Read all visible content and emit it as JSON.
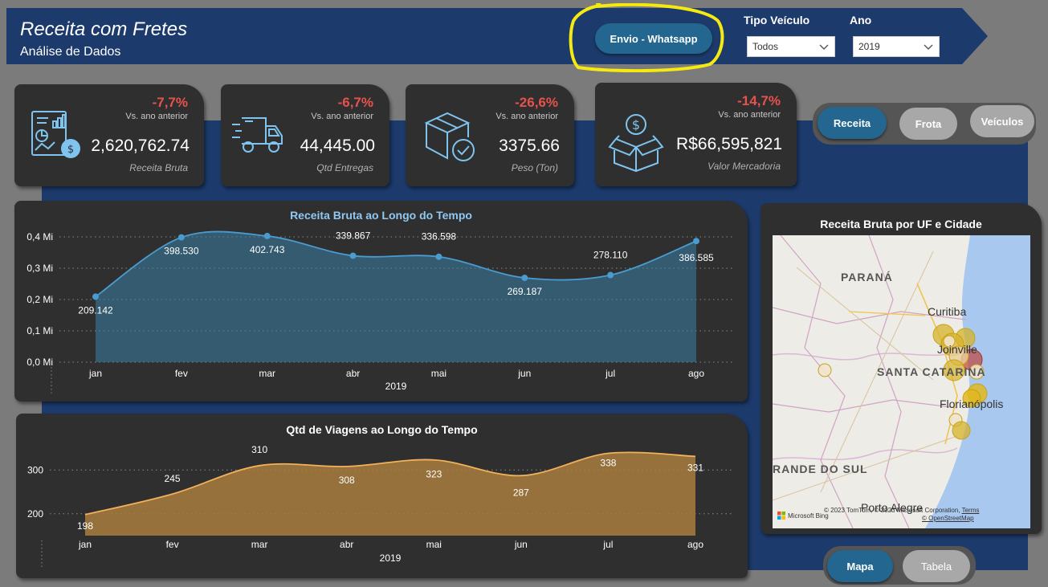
{
  "header": {
    "title": "Receita com Fretes",
    "subtitle": "Análise de Dados",
    "whatsapp_button": "Envio - Whatsapp"
  },
  "filters": {
    "vehicle_label": "Tipo Veículo",
    "vehicle_value": "Todos",
    "year_label": "Ano",
    "year_value": "2019"
  },
  "kpis": [
    {
      "pct": "-7,7%",
      "vs": "Vs. ano anterior",
      "value": "2,620,762.74",
      "label": "Receita Bruta",
      "icon": "report-chart-icon"
    },
    {
      "pct": "-6,7%",
      "vs": "Vs. ano anterior",
      "value": "44,445.00",
      "label": "Qtd Entregas",
      "icon": "delivery-truck-icon"
    },
    {
      "pct": "-26,6%",
      "vs": "Vs. ano anterior",
      "value": "3375.66",
      "label": "Peso (Ton)",
      "icon": "box-check-icon"
    },
    {
      "pct": "-14,7%",
      "vs": "Vs. ano anterior",
      "value": "R$66,595,821",
      "label": "Valor Mercadoria",
      "icon": "money-box-icon"
    }
  ],
  "nav": {
    "receita": "Receita",
    "frota": "Frota",
    "veiculos": "Veículos",
    "mapa": "Mapa",
    "tabela": "Tabela"
  },
  "colors": {
    "navy": "#1c3a6b",
    "card": "#2f2f2f",
    "negative": "#e8524e",
    "line_blue": "#3a8fc4",
    "line_orange": "#f2b15a",
    "highlight": "#f5ea10"
  },
  "chart_data": [
    {
      "type": "area",
      "title": "Receita Bruta ao Longo do Tempo",
      "xlabel": "2019",
      "ylabel": "",
      "categories": [
        "jan",
        "fev",
        "mar",
        "abr",
        "mai",
        "jun",
        "jul",
        "ago"
      ],
      "values": [
        209.142,
        398.53,
        402.743,
        339.867,
        336.598,
        269.187,
        278.11,
        386.585
      ],
      "labels": [
        "209.142",
        "398.530",
        "402.743",
        "339.867",
        "336.598",
        "269.187",
        "278.110",
        "386.585"
      ],
      "yticks": [
        "0,0 Mi",
        "0,1 Mi",
        "0,2 Mi",
        "0,3 Mi",
        "0,4 Mi"
      ],
      "ylim": [
        0,
        400
      ],
      "grid": true
    },
    {
      "type": "area",
      "title": "Qtd de Viagens ao Longo do Tempo",
      "xlabel": "2019",
      "ylabel": "",
      "categories": [
        "jan",
        "fev",
        "mar",
        "abr",
        "mai",
        "jun",
        "jul",
        "ago"
      ],
      "values": [
        198,
        245,
        310,
        308,
        323,
        287,
        338,
        331
      ],
      "labels": [
        "198",
        "245",
        "310",
        "308",
        "323",
        "287",
        "338",
        "331"
      ],
      "yticks": [
        "200",
        "300"
      ],
      "ylim": [
        150,
        350
      ],
      "grid": true
    }
  ],
  "map": {
    "title": "Receita Bruta por UF e Cidade",
    "places": [
      "PARANÁ",
      "Curitiba",
      "Joinville",
      "SANTA CATARINA",
      "Florianópolis",
      "RANDE DO SUL",
      "Porto Alegre"
    ],
    "attribution": "© 2023 TomTom, © 2023 Microsoft Corporation,",
    "terms": "Terms",
    "osm": "© OpenStreetMap",
    "brand": "Microsoft Bing"
  }
}
